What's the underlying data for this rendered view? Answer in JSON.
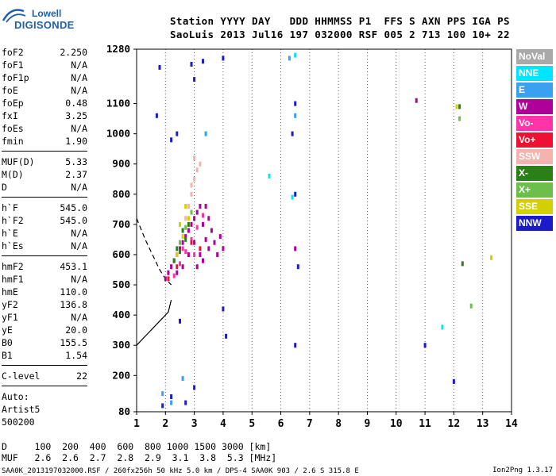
{
  "logo": {
    "line1": "Lowell",
    "line2": "DIGISONDE"
  },
  "header": {
    "line1": "Station YYYY DAY   DDD HHMMSS P1  FFS S AXN PPS IGA PS",
    "line2": "SaoLuis 2013 Jul16 197 032000 RSF 005 2 713 100 10+ 22"
  },
  "params": [
    {
      "name": "foF2",
      "value": "2.250"
    },
    {
      "name": "foF1",
      "value": "N/A"
    },
    {
      "name": "foF1p",
      "value": "N/A"
    },
    {
      "name": "foE",
      "value": "N/A"
    },
    {
      "name": "foEp",
      "value": "0.48"
    },
    {
      "name": "fxI",
      "value": "3.25"
    },
    {
      "name": "foEs",
      "value": "N/A"
    },
    {
      "name": "fmin",
      "value": "1.90"
    },
    {
      "sep": true
    },
    {
      "name": "MUF(D)",
      "value": "5.33"
    },
    {
      "name": "M(D)",
      "value": "2.37"
    },
    {
      "name": "D",
      "value": "N/A"
    },
    {
      "sep": true
    },
    {
      "name": "h`F",
      "value": "545.0"
    },
    {
      "name": "h`F2",
      "value": "545.0"
    },
    {
      "name": "h`E",
      "value": "N/A"
    },
    {
      "name": "h`Es",
      "value": "N/A"
    },
    {
      "sep": true
    },
    {
      "name": "hmF2",
      "value": "453.1"
    },
    {
      "name": "hmF1",
      "value": "N/A"
    },
    {
      "name": "hmE",
      "value": "110.0"
    },
    {
      "name": "yF2",
      "value": "136.8"
    },
    {
      "name": "yF1",
      "value": "N/A"
    },
    {
      "name": "yE",
      "value": "20.0"
    },
    {
      "name": "B0",
      "value": "155.5"
    },
    {
      "name": "B1",
      "value": "1.54"
    },
    {
      "sep": true
    },
    {
      "name": "C-level",
      "value": "22"
    },
    {
      "sep": true
    },
    {
      "name": "Auto:",
      "value": ""
    },
    {
      "name": "Artist5",
      "value": ""
    },
    {
      "name": "500200",
      "value": ""
    }
  ],
  "legend": [
    {
      "label": "NoVal",
      "color": "#a9a9a9"
    },
    {
      "label": "NNE",
      "color": "#00e5ff"
    },
    {
      "label": "E",
      "color": "#3aa0f0"
    },
    {
      "label": "W",
      "color": "#b0009a"
    },
    {
      "label": "Vo-",
      "color": "#ff33aa"
    },
    {
      "label": "Vo+",
      "color": "#ee1133"
    },
    {
      "label": "SSW",
      "color": "#f5b3ad"
    },
    {
      "label": "X-",
      "color": "#2a7f16"
    },
    {
      "label": "X+",
      "color": "#6cbf4a"
    },
    {
      "label": "SSE",
      "color": "#d2d000"
    },
    {
      "label": "NNW",
      "color": "#1b1bcc"
    }
  ],
  "footer": {
    "row_d": "D     100  200  400  600  800 1000 1500 3000 [km]",
    "row_muf": "MUF   2.6  2.6  2.7  2.8  2.9  3.1  3.8  5.3 [MHz]",
    "file_line": "SAA0K_2013197032000.RSF / 260fx256h 50 kHz 5.0 km / DPS-4 SAA0K 903 / 2.6 S 315.8 E",
    "version": "Ion2Png 1.3.17"
  },
  "chart_data": {
    "type": "scatter",
    "title": "",
    "xlabel": "",
    "ylabel": "",
    "x_unit_hint": "Frequency (MHz)",
    "y_unit_hint": "Virtual height (km)",
    "xlim": [
      1,
      14
    ],
    "ylim": [
      80,
      1280
    ],
    "x_ticks": [
      1,
      2,
      3,
      4,
      5,
      6,
      7,
      8,
      9,
      10,
      11,
      12,
      13,
      14
    ],
    "y_ticks": [
      80,
      200,
      300,
      400,
      500,
      600,
      700,
      800,
      900,
      1000,
      1100,
      1280
    ],
    "grid": "vertical dotted at integer MHz",
    "legend_placement": "right",
    "series": [
      {
        "name": "W",
        "color": "#b0009a",
        "points": [
          [
            2.0,
            520
          ],
          [
            2.1,
            540
          ],
          [
            2.2,
            560
          ],
          [
            2.3,
            580
          ],
          [
            2.4,
            600
          ],
          [
            2.5,
            620
          ],
          [
            2.6,
            640
          ],
          [
            2.7,
            660
          ],
          [
            2.8,
            680
          ],
          [
            2.9,
            700
          ],
          [
            3.0,
            720
          ],
          [
            3.1,
            740
          ],
          [
            3.2,
            760
          ],
          [
            3.3,
            700
          ],
          [
            3.4,
            650
          ],
          [
            3.5,
            620
          ],
          [
            3.6,
            680
          ],
          [
            3.7,
            640
          ],
          [
            3.8,
            600
          ],
          [
            3.9,
            660
          ],
          [
            4.0,
            620
          ],
          [
            3.1,
            560
          ],
          [
            3.3,
            580
          ],
          [
            3.5,
            720
          ],
          [
            2.8,
            600
          ],
          [
            3.0,
            640
          ],
          [
            3.2,
            600
          ],
          [
            3.4,
            760
          ],
          [
            2.4,
            540
          ],
          [
            2.6,
            560
          ],
          [
            10.7,
            1110
          ],
          [
            6.5,
            620
          ]
        ]
      },
      {
        "name": "Vo-",
        "color": "#ff33aa",
        "points": [
          [
            2.3,
            530
          ],
          [
            2.5,
            570
          ],
          [
            2.7,
            610
          ],
          [
            2.9,
            650
          ],
          [
            3.1,
            690
          ],
          [
            3.3,
            730
          ],
          [
            2.6,
            620
          ],
          [
            3.0,
            600
          ]
        ]
      },
      {
        "name": "Vo+",
        "color": "#ee1133",
        "points": [
          [
            2.1,
            520
          ],
          [
            2.4,
            560
          ],
          [
            2.9,
            640
          ],
          [
            3.2,
            620
          ]
        ]
      },
      {
        "name": "SSW",
        "color": "#f5b3ad",
        "points": [
          [
            2.8,
            760
          ],
          [
            2.9,
            800
          ],
          [
            3.0,
            850
          ],
          [
            3.1,
            880
          ],
          [
            2.7,
            720
          ],
          [
            3.0,
            920
          ],
          [
            2.9,
            830
          ],
          [
            3.2,
            900
          ]
        ]
      },
      {
        "name": "X-",
        "color": "#2a7f16",
        "points": [
          [
            2.3,
            580
          ],
          [
            2.5,
            610
          ],
          [
            2.7,
            650
          ],
          [
            2.8,
            700
          ],
          [
            2.4,
            620
          ],
          [
            2.6,
            680
          ],
          [
            12.2,
            1090
          ],
          [
            12.3,
            570
          ]
        ]
      },
      {
        "name": "X+",
        "color": "#6cbf4a",
        "points": [
          [
            2.5,
            640
          ],
          [
            2.7,
            690
          ],
          [
            2.9,
            740
          ],
          [
            12.6,
            430
          ],
          [
            12.2,
            1050
          ]
        ]
      },
      {
        "name": "SSE",
        "color": "#d2d000",
        "points": [
          [
            2.4,
            600
          ],
          [
            2.6,
            660
          ],
          [
            2.8,
            720
          ],
          [
            2.5,
            700
          ],
          [
            2.7,
            760
          ],
          [
            12.1,
            1090
          ],
          [
            13.3,
            590
          ]
        ]
      },
      {
        "name": "NNW",
        "color": "#1b1bcc",
        "points": [
          [
            1.9,
            100
          ],
          [
            2.2,
            130
          ],
          [
            2.7,
            110
          ],
          [
            3.0,
            160
          ],
          [
            3.3,
            1240
          ],
          [
            4.0,
            1250
          ],
          [
            1.8,
            1220
          ],
          [
            2.4,
            1000
          ],
          [
            2.5,
            380
          ],
          [
            2.9,
            1230
          ],
          [
            6.5,
            300
          ],
          [
            6.6,
            560
          ],
          [
            6.5,
            800
          ],
          [
            6.4,
            1000
          ],
          [
            6.5,
            1100
          ],
          [
            11.0,
            300
          ],
          [
            12.0,
            180
          ],
          [
            4.1,
            330
          ],
          [
            4.0,
            420
          ],
          [
            3.0,
            1180
          ],
          [
            2.2,
            980
          ],
          [
            1.7,
            1060
          ]
        ]
      },
      {
        "name": "E",
        "color": "#3aa0f0",
        "points": [
          [
            1.9,
            140
          ],
          [
            2.2,
            110
          ],
          [
            2.6,
            190
          ],
          [
            3.4,
            1000
          ],
          [
            6.3,
            1250
          ],
          [
            6.5,
            1060
          ]
        ]
      },
      {
        "name": "NNE",
        "color": "#00e5ff",
        "points": [
          [
            6.5,
            1260
          ],
          [
            6.4,
            790
          ],
          [
            5.6,
            860
          ],
          [
            11.6,
            360
          ]
        ]
      }
    ],
    "extra_lines": [
      {
        "name": "dashed-profile",
        "style": "dashed",
        "points": [
          [
            1.0,
            720
          ],
          [
            1.3,
            650
          ],
          [
            1.6,
            590
          ],
          [
            1.8,
            550
          ],
          [
            2.0,
            520
          ],
          [
            2.2,
            500
          ]
        ]
      },
      {
        "name": "solid-profile",
        "style": "solid",
        "points": [
          [
            1.0,
            300
          ],
          [
            1.4,
            340
          ],
          [
            1.7,
            370
          ],
          [
            1.9,
            390
          ],
          [
            2.1,
            410
          ],
          [
            2.2,
            450
          ]
        ]
      }
    ]
  }
}
